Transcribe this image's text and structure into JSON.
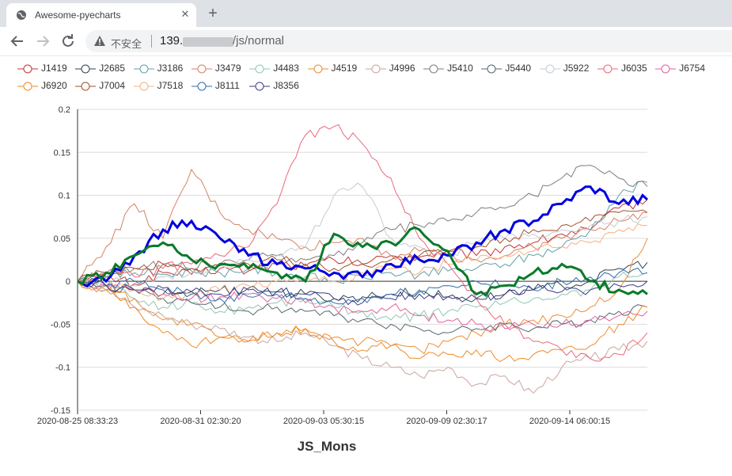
{
  "browser": {
    "tab_title": "Awesome-pyecharts",
    "tab_close": "✕",
    "new_tab": "+",
    "security_label": "不安全",
    "url_prefix": "139.",
    "url_suffix": "/js/normal"
  },
  "chart_data": {
    "type": "line",
    "xlabel": "JS_Mons",
    "ylim": [
      -0.15,
      0.2
    ],
    "ytick_labels": [
      "0.2",
      "0.15",
      "0.1",
      "0.05",
      "0",
      "-0.05",
      "-0.1",
      "-0.15"
    ],
    "ytick_values": [
      0.2,
      0.15,
      0.1,
      0.05,
      0,
      -0.05,
      -0.1,
      -0.15
    ],
    "xtick_labels": [
      "2020-08-25 08:33:23",
      "2020-08-31 02:30:20",
      "2020-09-03 05:30:15",
      "2020-09-09 02:30:17",
      "2020-09-14 06:00:15"
    ],
    "grid": "horizontal",
    "legend_position": "top",
    "x_steps": [
      0,
      5,
      10,
      15,
      20,
      25,
      30,
      35,
      40,
      45,
      50,
      55,
      60,
      65,
      70,
      75,
      80,
      85,
      90,
      95,
      100
    ],
    "series": [
      {
        "name": "J1419",
        "color": "#c23531",
        "values": [
          0,
          0.005,
          -0.003,
          0.01,
          0.008,
          0.015,
          0.012,
          0.02,
          0.018,
          0.025,
          0.02,
          0.03,
          0.028,
          0.035,
          0.03,
          0.04,
          0.045,
          0.055,
          0.06,
          0.085,
          0.095
        ]
      },
      {
        "name": "J2685",
        "color": "#2f4554",
        "values": [
          0,
          -0.005,
          -0.01,
          -0.015,
          -0.012,
          -0.01,
          -0.008,
          -0.012,
          -0.015,
          -0.02,
          -0.018,
          -0.015,
          -0.012,
          -0.018,
          -0.02,
          -0.015,
          -0.01,
          -0.005,
          0.0,
          0.015,
          0.022
        ]
      },
      {
        "name": "J3186",
        "color": "#61a0a8",
        "values": [
          0,
          0.005,
          0.01,
          0.008,
          0.012,
          0.01,
          0.015,
          0.01,
          0.005,
          0.0,
          0.005,
          0.01,
          0.008,
          0.012,
          0.015,
          0.02,
          0.03,
          0.04,
          0.06,
          0.1,
          0.115
        ]
      },
      {
        "name": "J3479",
        "color": "#d48265",
        "values": [
          0,
          0.04,
          0.09,
          0.05,
          0.13,
          0.08,
          0.06,
          0.05,
          0.04,
          0.045,
          0.05,
          0.03,
          0.035,
          0.03,
          0.025,
          0.03,
          0.04,
          0.05,
          0.06,
          0.07,
          0.08
        ]
      },
      {
        "name": "J4483",
        "color": "#91c7ae",
        "values": [
          0,
          -0.005,
          -0.02,
          -0.03,
          -0.025,
          -0.035,
          -0.03,
          -0.025,
          -0.02,
          -0.03,
          -0.035,
          -0.045,
          -0.04,
          -0.035,
          -0.03,
          -0.025,
          -0.02,
          -0.015,
          -0.01,
          0.005,
          0.01
        ]
      },
      {
        "name": "J4519",
        "color": "#e98f36",
        "values": [
          0,
          -0.01,
          -0.02,
          -0.045,
          -0.05,
          -0.065,
          -0.07,
          -0.06,
          -0.055,
          -0.065,
          -0.07,
          -0.075,
          -0.08,
          -0.07,
          -0.06,
          -0.05,
          -0.045,
          -0.04,
          -0.03,
          -0.01,
          0.05
        ]
      },
      {
        "name": "J4996",
        "color": "#c9a59e",
        "values": [
          0,
          -0.01,
          -0.03,
          -0.04,
          -0.05,
          -0.055,
          -0.065,
          -0.07,
          -0.06,
          -0.075,
          -0.09,
          -0.1,
          -0.11,
          -0.1,
          -0.12,
          -0.11,
          -0.13,
          -0.1,
          -0.09,
          -0.08,
          -0.07
        ]
      },
      {
        "name": "J5410",
        "color": "#7d7d7d",
        "values": [
          0,
          0.01,
          0.015,
          0.02,
          0.015,
          0.02,
          0.025,
          0.03,
          0.025,
          0.03,
          0.045,
          0.06,
          0.065,
          0.07,
          0.08,
          0.085,
          0.1,
          0.12,
          0.135,
          0.12,
          0.11
        ]
      },
      {
        "name": "J5440",
        "color": "#546570",
        "values": [
          0,
          -0.005,
          -0.01,
          -0.02,
          -0.025,
          -0.03,
          -0.035,
          -0.03,
          -0.035,
          -0.04,
          -0.045,
          -0.05,
          -0.055,
          -0.06,
          -0.055,
          -0.05,
          -0.055,
          -0.05,
          -0.045,
          -0.035,
          -0.03
        ]
      },
      {
        "name": "J5922",
        "color": "#c4ccd3",
        "values": [
          0,
          0.0,
          -0.005,
          0.005,
          0.01,
          0.02,
          0.025,
          0.03,
          0.04,
          0.1,
          0.11,
          0.05,
          0.04,
          0.03,
          0.045,
          0.05,
          0.055,
          0.06,
          0.065,
          0.07,
          0.075
        ]
      },
      {
        "name": "J6035",
        "color": "#e86a7b",
        "values": [
          0,
          0.01,
          0.005,
          0.015,
          0.02,
          0.03,
          0.04,
          0.09,
          0.17,
          0.18,
          0.16,
          0.12,
          0.05,
          0.02,
          -0.02,
          -0.05,
          -0.07,
          -0.08,
          -0.09,
          -0.085,
          -0.06
        ]
      },
      {
        "name": "J6754",
        "color": "#e0629e",
        "values": [
          0,
          -0.005,
          -0.01,
          -0.015,
          -0.02,
          -0.018,
          -0.015,
          -0.02,
          -0.025,
          -0.03,
          -0.035,
          -0.03,
          -0.04,
          -0.045,
          -0.05,
          -0.055,
          -0.05,
          -0.05,
          -0.045,
          -0.04,
          -0.035
        ]
      },
      {
        "name": "J6920",
        "color": "#f08a25",
        "values": [
          0,
          -0.01,
          -0.03,
          -0.06,
          -0.075,
          -0.065,
          -0.07,
          -0.06,
          -0.055,
          -0.07,
          -0.08,
          -0.075,
          -0.09,
          -0.085,
          -0.08,
          -0.09,
          -0.085,
          -0.08,
          -0.075,
          -0.05,
          -0.03
        ]
      },
      {
        "name": "J7004",
        "color": "#a0522d",
        "values": [
          0,
          0.01,
          0.015,
          0.02,
          0.015,
          0.018,
          0.02,
          0.025,
          0.02,
          0.015,
          0.02,
          0.025,
          0.03,
          0.035,
          0.04,
          0.05,
          0.06,
          0.065,
          0.07,
          0.08,
          0.08
        ]
      },
      {
        "name": "J7518",
        "color": "#f4b183",
        "values": [
          0,
          -0.005,
          -0.01,
          -0.02,
          -0.015,
          -0.01,
          -0.005,
          0.0,
          0.005,
          0.0,
          0.01,
          0.015,
          0.01,
          0.02,
          0.025,
          0.03,
          0.035,
          0.04,
          0.045,
          0.06,
          0.065
        ]
      },
      {
        "name": "J8111",
        "color": "#2f6fa8",
        "values": [
          0,
          -0.005,
          0.0,
          -0.01,
          -0.015,
          -0.02,
          -0.018,
          -0.015,
          -0.02,
          -0.025,
          -0.02,
          -0.015,
          -0.01,
          -0.005,
          0.0,
          -0.005,
          -0.01,
          0.0,
          0.005,
          0.01,
          0.01
        ]
      },
      {
        "name": "J8356",
        "color": "#3a3a8c",
        "values": [
          0,
          -0.005,
          -0.01,
          -0.008,
          -0.012,
          -0.015,
          -0.01,
          -0.012,
          -0.015,
          -0.02,
          -0.025,
          -0.02,
          -0.015,
          -0.018,
          -0.02,
          -0.015,
          -0.01,
          -0.012,
          -0.01,
          -0.005,
          0.0
        ]
      },
      {
        "name": "",
        "color": "#0000dd",
        "bold": true,
        "values": [
          0,
          0.0,
          0.03,
          0.06,
          0.07,
          0.05,
          0.03,
          0.02,
          0.015,
          0.01,
          0.005,
          0.02,
          0.025,
          0.03,
          0.045,
          0.06,
          0.07,
          0.09,
          0.11,
          0.09,
          0.095
        ]
      },
      {
        "name": "",
        "color": "#0a7a2a",
        "bold": true,
        "values": [
          0,
          0.01,
          0.03,
          0.045,
          0.025,
          0.02,
          0.015,
          0.01,
          0.0,
          0.055,
          0.04,
          0.045,
          0.06,
          0.035,
          -0.015,
          -0.005,
          0.01,
          0.02,
          0.0,
          -0.01,
          -0.015
        ]
      }
    ]
  }
}
